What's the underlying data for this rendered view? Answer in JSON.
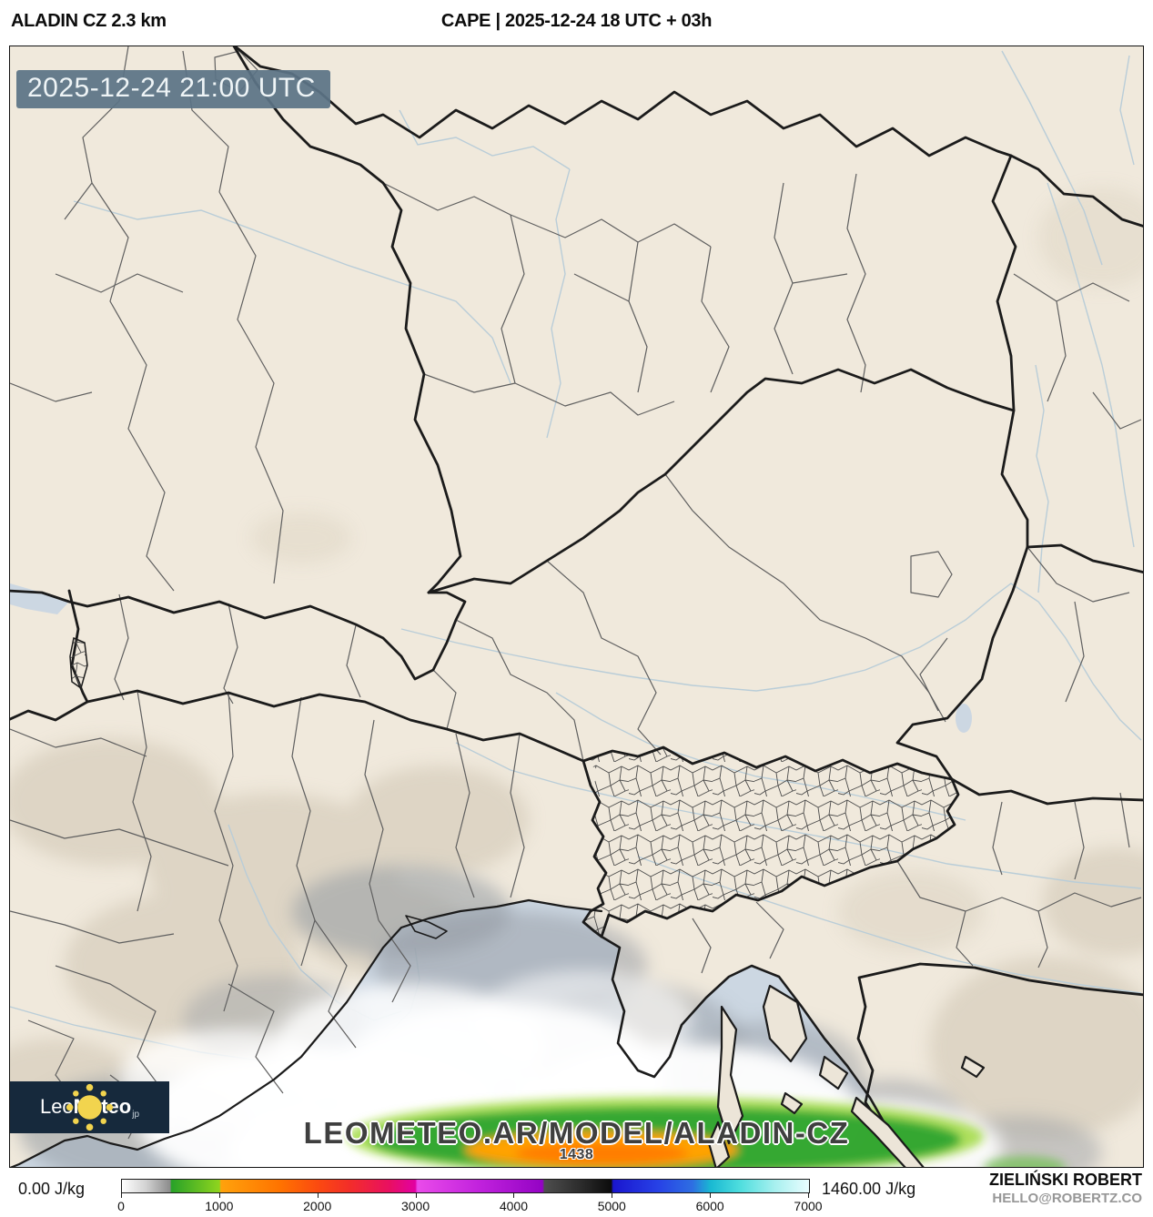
{
  "header": {
    "model_title": "ALADIN CZ 2.3 km",
    "product_title": "CAPE | 2025-12-24 18 UTC + 03h"
  },
  "map": {
    "valid_time": "2025-12-24 21:00 UTC",
    "watermark": "LEOMETEO.AR/MODEL/ALADIN-CZ",
    "max_annotation": "1438",
    "logo": {
      "icon": "sun-icon",
      "brand_first": "Leo",
      "brand_second": "Meteo",
      "brand_suffix": "jp"
    }
  },
  "legend": {
    "min_label": "0.00 J/kg",
    "max_label": "1460.00 J/kg",
    "ticks": [
      "0",
      "1000",
      "2000",
      "3000",
      "4000",
      "5000",
      "6000",
      "7000"
    ]
  },
  "credits": {
    "author": "ZIELIŃSKI ROBERT",
    "contact": "HELLO@ROBERTZ.CO"
  },
  "colors": {
    "land": "#f0e9dc",
    "sea": "#ccd7e2",
    "river": "#b9cdd8",
    "border_national": "#1b1b1b",
    "border_region": "#5f5f5f",
    "timestamp_bg": "#5b7385",
    "logo_bg": "#16293c",
    "sun_yellow": "#f2d44e",
    "watermark_text": "#3f3f3f",
    "credit_gray": "#979797"
  },
  "chart_data": {
    "type": "heatmap",
    "variable": "CAPE",
    "unit": "J/kg",
    "model": "ALADIN CZ 2.3 km",
    "run": "2025-12-24 18 UTC",
    "lead_hours": 3,
    "valid": "2025-12-24 21:00 UTC",
    "field_min": 0.0,
    "field_max": 1460.0,
    "field_max_annotation": 1438,
    "legend_position": "bottom",
    "colorbar": {
      "domain": [
        0,
        7000
      ],
      "ticks": [
        0,
        1000,
        2000,
        3000,
        4000,
        5000,
        6000,
        7000
      ],
      "stops": [
        [
          0,
          "#ffffff"
        ],
        [
          3.5,
          "#d2d2d2"
        ],
        [
          7.0,
          "#8c8c8c"
        ],
        [
          7.2,
          "#28a228"
        ],
        [
          14.2,
          "#8fd41e"
        ],
        [
          14.4,
          "#ffa20c"
        ],
        [
          23.0,
          "#ff7300"
        ],
        [
          28.5,
          "#fb4a10"
        ],
        [
          33.0,
          "#f32e28"
        ],
        [
          39.0,
          "#e90f62"
        ],
        [
          42.7,
          "#e200a2"
        ],
        [
          43.0,
          "#ea4bea"
        ],
        [
          52.0,
          "#c122dd"
        ],
        [
          61.2,
          "#9403c4"
        ],
        [
          61.5,
          "#4e4e4e"
        ],
        [
          67.0,
          "#2a2a2a"
        ],
        [
          71.2,
          "#0c0c0c"
        ],
        [
          71.5,
          "#1a16cf"
        ],
        [
          78.0,
          "#2741e6"
        ],
        [
          83.0,
          "#2e6ee2"
        ],
        [
          85.7,
          "#19b9d2"
        ],
        [
          90.0,
          "#4fdede"
        ],
        [
          95.0,
          "#a7f0ef"
        ],
        [
          100,
          "#eafdff"
        ]
      ]
    }
  }
}
